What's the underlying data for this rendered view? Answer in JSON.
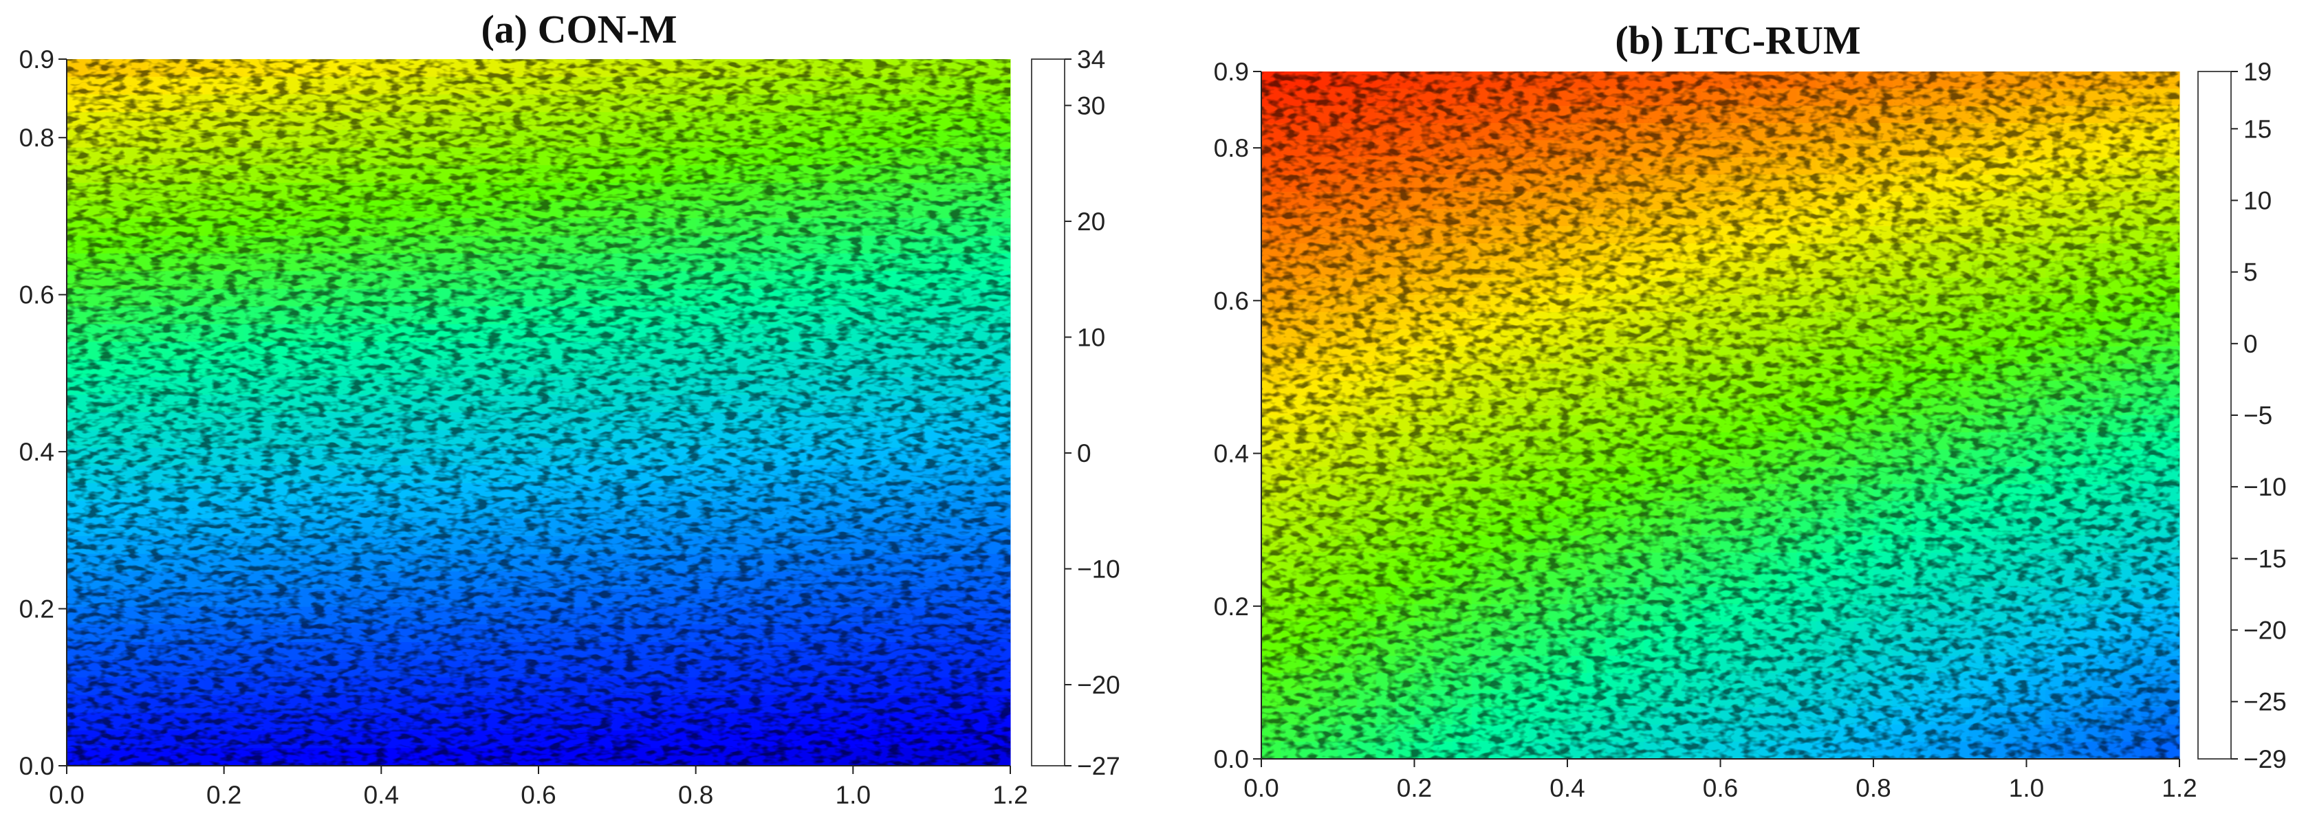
{
  "chart_data": [
    {
      "type": "heatmap",
      "title": "(a) CON-M",
      "xlabel": "",
      "ylabel": "",
      "xlim": [
        0.0,
        1.2
      ],
      "ylim": [
        0.0,
        0.9
      ],
      "x_ticks": [
        "0.0",
        "0.2",
        "0.4",
        "0.6",
        "0.8",
        "1.0",
        "1.2"
      ],
      "y_ticks": [
        "0.0",
        "0.2",
        "0.4",
        "0.6",
        "0.8",
        "0.9"
      ],
      "colorbar": {
        "min": -27,
        "max": 34,
        "ticks": [
          "34",
          "30",
          "20",
          "10",
          "0",
          "−10",
          "−20",
          "−27"
        ]
      },
      "field": {
        "description_values": "value at plot corners in colorbar units",
        "bottom_left": -20,
        "bottom_right": -22,
        "top_left": 22,
        "top_right": 14
      },
      "grid": false
    },
    {
      "type": "heatmap",
      "title": "(b) LTC-RUM",
      "xlabel": "",
      "ylabel": "",
      "xlim": [
        0.0,
        1.2
      ],
      "ylim": [
        0.0,
        0.9
      ],
      "x_ticks": [
        "0.0",
        "0.2",
        "0.4",
        "0.6",
        "0.8",
        "1.0",
        "1.2"
      ],
      "y_ticks": [
        "0.0",
        "0.2",
        "0.4",
        "0.6",
        "0.8",
        "0.9"
      ],
      "colorbar": {
        "min": -29,
        "max": 19,
        "ticks": [
          "19",
          "15",
          "10",
          "5",
          "0",
          "−5",
          "−10",
          "−15",
          "−20",
          "−25",
          "−29"
        ]
      },
      "field": {
        "description_values": "value at plot corners in colorbar units",
        "bottom_left": -2,
        "bottom_right": -18,
        "top_left": 17,
        "top_right": 10
      },
      "grid": false
    }
  ]
}
